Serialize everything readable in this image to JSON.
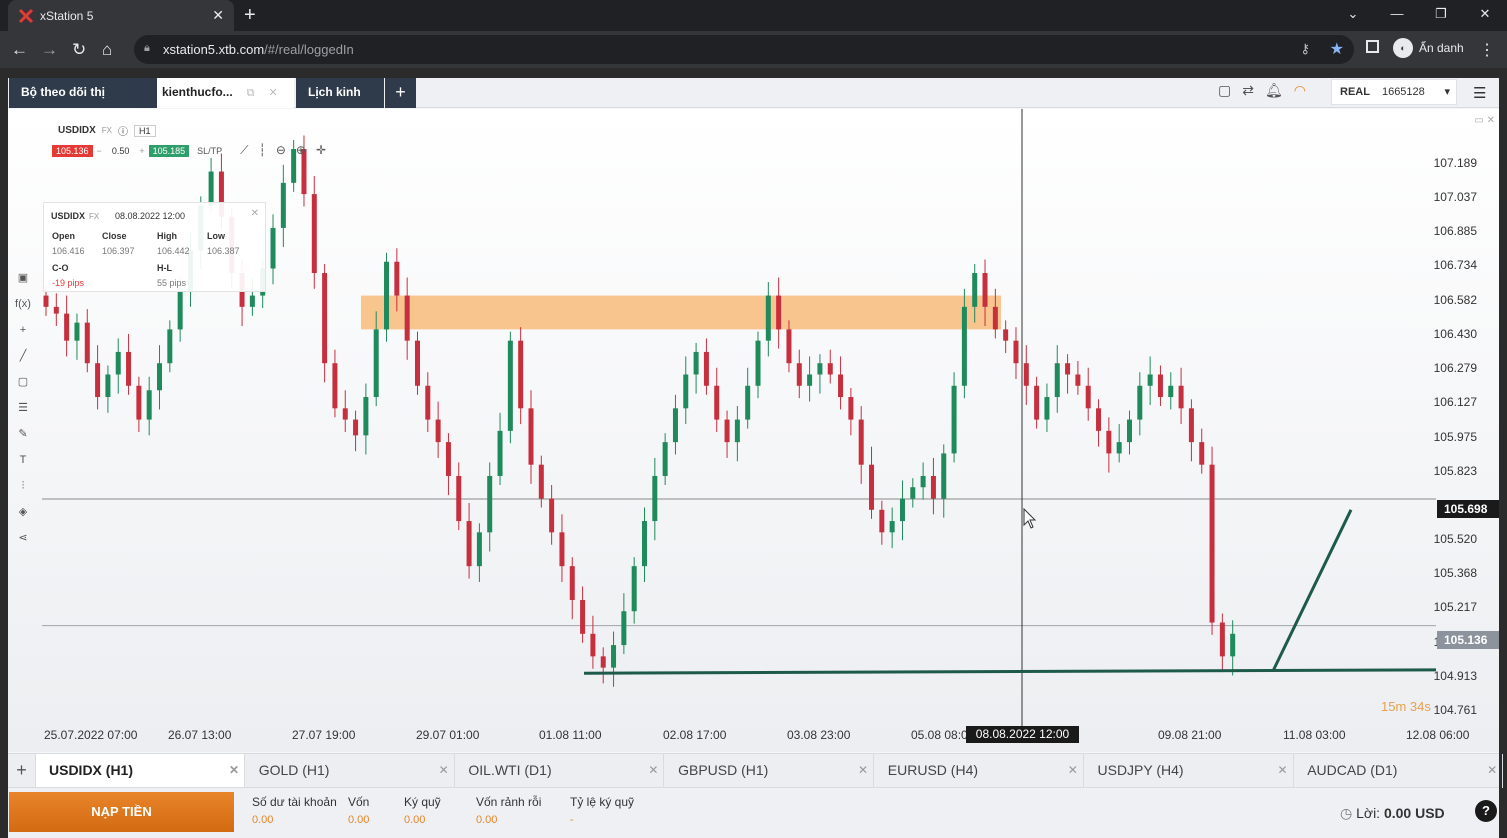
{
  "browser": {
    "tab_title": "xStation 5",
    "url_host": "xstation5.xtb.com",
    "url_path": "/#/real/loggedIn",
    "incognito_label": "Ẩn danh"
  },
  "app_tabs": [
    {
      "label": "Bộ theo dõi thị trường"
    },
    {
      "label": "kienthucfo..."
    },
    {
      "label": "Lịch kinh tế"
    }
  ],
  "account": {
    "type": "REAL",
    "number": "1665128"
  },
  "chart_header": {
    "symbol": "USDIDX",
    "market": "FX",
    "timeframe": "H1",
    "sell_price": "105.136",
    "volume": "0.50",
    "buy_price": "105.185",
    "sltp_label": "SL/TP"
  },
  "ohlc_box": {
    "symbol": "USDIDX",
    "market": "FX",
    "datetime": "08.08.2022 12:00",
    "open_label": "Open",
    "open": "106.416",
    "close_label": "Close",
    "close": "106.397",
    "high_label": "High",
    "high": "106.442",
    "low_label": "Low",
    "low": "106.387",
    "co_label": "C-O",
    "co": "-19 pips",
    "hl_label": "H-L",
    "hl": "55 pips"
  },
  "chart_data": {
    "type": "candlestick",
    "ylim": [
      104.7,
      107.25
    ],
    "y_ticks": [
      "107.189",
      "107.037",
      "106.885",
      "106.734",
      "106.582",
      "106.430",
      "106.279",
      "106.127",
      "105.975",
      "105.823",
      "105.520",
      "105.368",
      "105.217",
      "105.065",
      "104.913",
      "104.761"
    ],
    "x_ticks": [
      "25.07.2022 07:00",
      "26.07 13:00",
      "27.07 19:00",
      "29.07 01:00",
      "01.08 11:00",
      "02.08 17:00",
      "03.08 23:00",
      "05.08 08:00",
      "09.08 21:00",
      "11.08 03:00",
      "12.08 06:00"
    ],
    "price_tags": [
      {
        "value": "105.698",
        "color": "#1a1a1a"
      },
      {
        "value": "105.136",
        "color": "#8c939c"
      }
    ],
    "crosshair_time": "08.08.2022 12:00",
    "candle_timer": "15m 34s",
    "resistance_zone": {
      "from": 106.45,
      "to": 106.6,
      "color": "#f7b36a"
    },
    "colors": {
      "up": "#1f8a5b",
      "down": "#c62f3e",
      "trendline": "#1e5a4a"
    },
    "closes": [
      106.55,
      106.52,
      106.4,
      106.48,
      106.3,
      106.15,
      106.25,
      106.35,
      106.2,
      106.05,
      106.18,
      106.3,
      106.45,
      106.62,
      106.8,
      107.0,
      107.15,
      106.95,
      106.7,
      106.55,
      106.6,
      106.72,
      106.9,
      107.1,
      107.25,
      107.05,
      106.7,
      106.3,
      106.1,
      106.05,
      105.98,
      106.15,
      106.45,
      106.75,
      106.6,
      106.4,
      106.2,
      106.05,
      105.95,
      105.8,
      105.6,
      105.4,
      105.55,
      105.8,
      106.0,
      106.4,
      106.1,
      105.85,
      105.7,
      105.55,
      105.4,
      105.25,
      105.1,
      105.0,
      104.95,
      105.05,
      105.2,
      105.4,
      105.6,
      105.8,
      105.95,
      106.1,
      106.25,
      106.35,
      106.2,
      106.05,
      105.95,
      106.05,
      106.2,
      106.4,
      106.6,
      106.45,
      106.3,
      106.2,
      106.25,
      106.3,
      106.25,
      106.15,
      106.05,
      105.85,
      105.65,
      105.55,
      105.6,
      105.7,
      105.75,
      105.8,
      105.7,
      105.9,
      106.2,
      106.55,
      106.7,
      106.55,
      106.45,
      106.4,
      106.3,
      106.2,
      106.05,
      106.15,
      106.3,
      106.25,
      106.2,
      106.1,
      106.0,
      105.9,
      105.95,
      106.05,
      106.2,
      106.25,
      106.15,
      106.2,
      106.1,
      105.95,
      105.85,
      105.15,
      105.0,
      105.1
    ]
  },
  "drawing_hint": "support and projection trendlines",
  "instrument_tabs": [
    {
      "label": "USDIDX (H1)",
      "active": true
    },
    {
      "label": "GOLD (H1)"
    },
    {
      "label": "OIL.WTI (D1)"
    },
    {
      "label": "GBPUSD (H1)"
    },
    {
      "label": "EURUSD (H4)"
    },
    {
      "label": "USDJPY (H4)"
    },
    {
      "label": "AUDCAD (D1)"
    }
  ],
  "footer": {
    "deposit_label": "NẠP TIỀN",
    "stats": [
      {
        "label": "Số dư tài khoản",
        "value": "0.00"
      },
      {
        "label": "Vốn",
        "value": "0.00"
      },
      {
        "label": "Ký quỹ",
        "value": "0.00"
      },
      {
        "label": "Vốn rảnh rỗi",
        "value": "0.00"
      },
      {
        "label": "Tỷ lệ ký quỹ",
        "value": "-"
      }
    ],
    "profit_label": "Lời:",
    "profit_value": "0.00 USD"
  }
}
